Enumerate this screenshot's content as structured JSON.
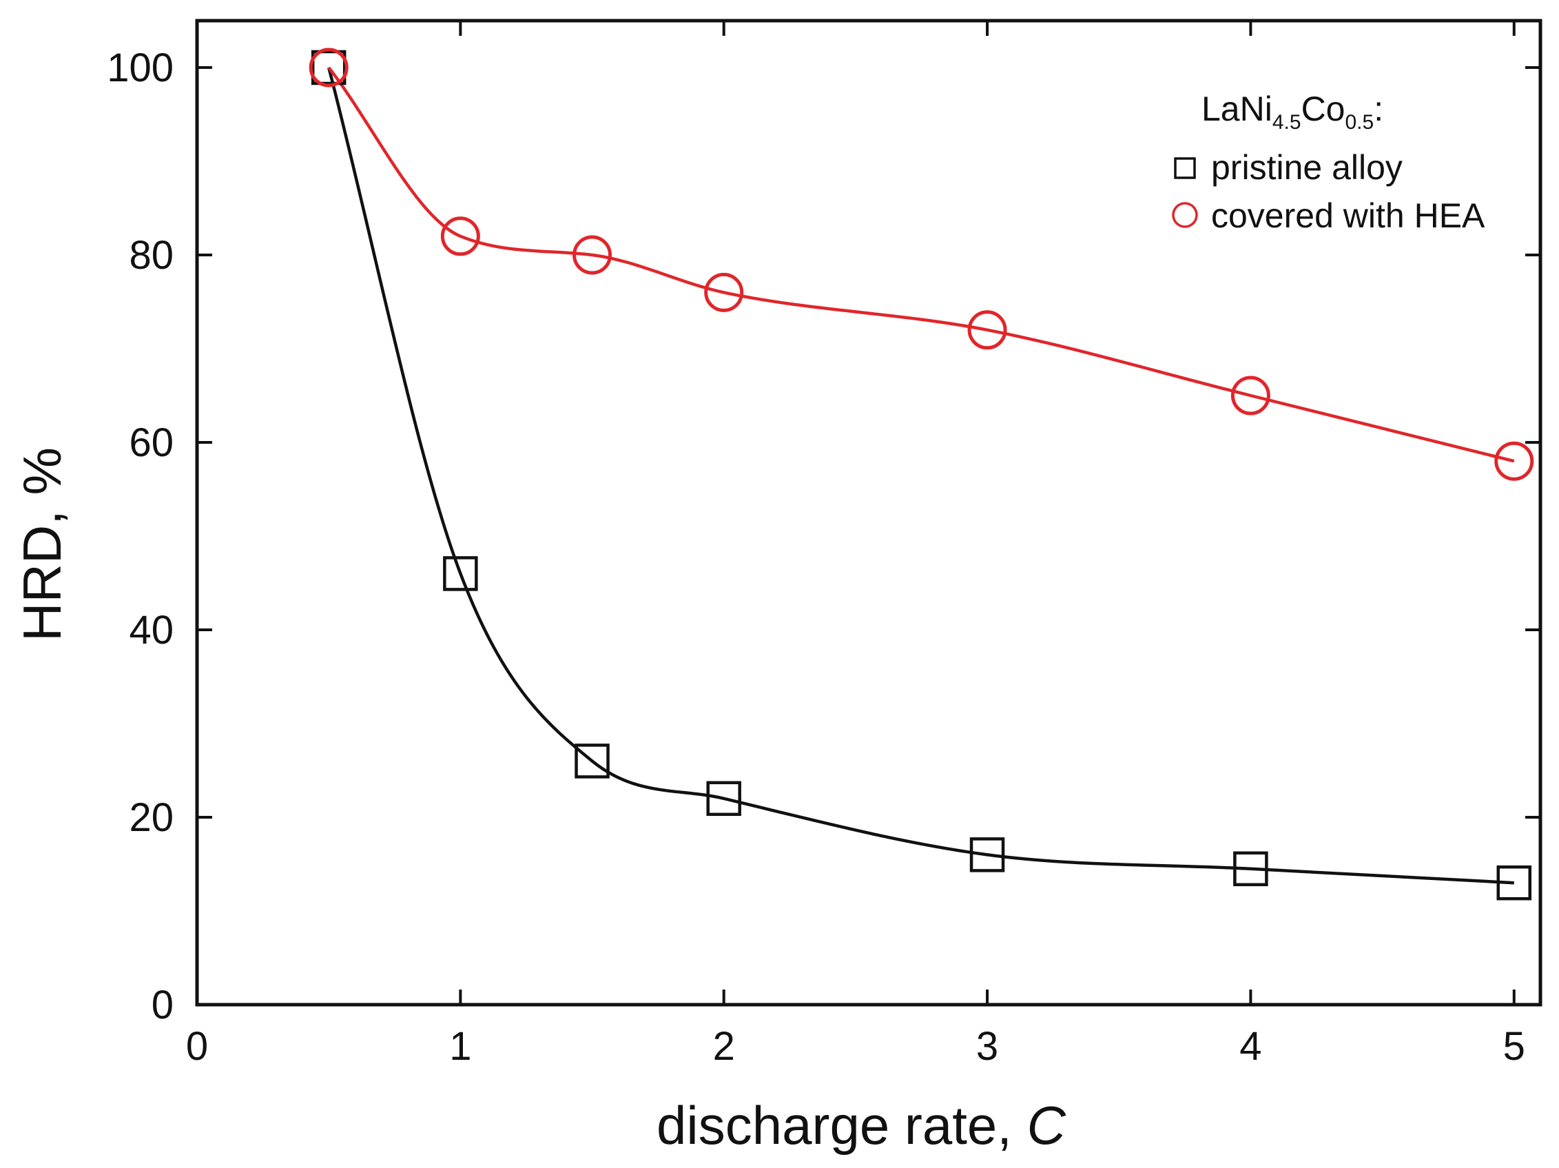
{
  "chart_data": {
    "type": "scatter",
    "title": "",
    "xlabel": "discharge rate,",
    "xlabel_italic_unit": "C",
    "ylabel": "HRD, %",
    "xlim": [
      0,
      5.1
    ],
    "ylim": [
      0,
      105
    ],
    "x_ticks": [
      0,
      1,
      2,
      3,
      4,
      5
    ],
    "y_ticks": [
      0,
      20,
      40,
      60,
      80,
      100
    ],
    "x_tick_labels": [
      "0",
      "1",
      "2",
      "3",
      "4",
      "5"
    ],
    "y_tick_labels": [
      "0",
      "20",
      "40",
      "60",
      "80",
      "100"
    ],
    "grid": false,
    "legend": {
      "position": "top-right",
      "heading_base": "LaNi",
      "heading_sub1": "4.5",
      "heading_mid": "Co",
      "heading_sub2": "0.5",
      "heading_tail": ":"
    },
    "series": [
      {
        "name": "pristine alloy",
        "marker": "square",
        "color": "#111111",
        "x": [
          0.5,
          1,
          1.5,
          2,
          3,
          4,
          5
        ],
        "y": [
          100,
          46,
          26,
          22,
          16,
          14.5,
          13
        ]
      },
      {
        "name": "covered with HEA",
        "marker": "circle",
        "color": "#e0262b",
        "x": [
          0.5,
          1,
          1.5,
          2,
          3,
          4,
          5
        ],
        "y": [
          100,
          82,
          80,
          76,
          72,
          65,
          58
        ]
      }
    ]
  }
}
